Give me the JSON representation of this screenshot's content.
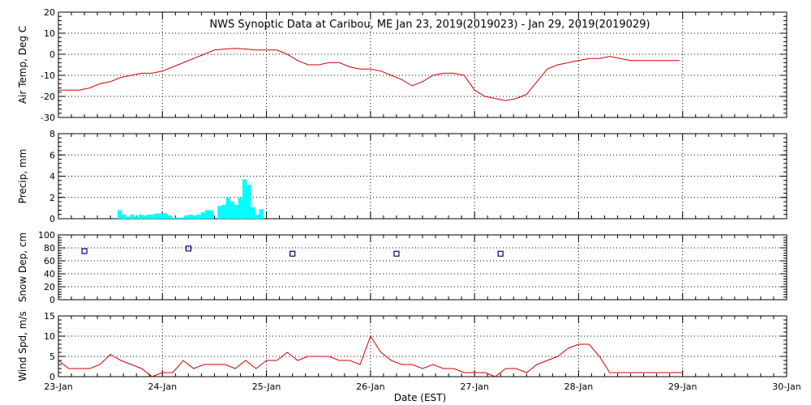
{
  "title": "NWS Synoptic Data at Caribou, ME   Jan 23, 2019(2019023) - Jan 29, 2019(2019029)",
  "xlabel": "Date (EST)",
  "colors": {
    "line": "#cc0000",
    "precip": "#00ffff",
    "snow": "#00008b",
    "frame": "#000000"
  },
  "chart_data": [
    {
      "type": "line",
      "ylabel": "Air Temp, Deg C",
      "ylim": [
        -30,
        20
      ],
      "yticks": [
        20,
        10,
        0,
        -10,
        -20,
        -30
      ],
      "x_unit": "days since 23-Jan 00:00 EST",
      "series": [
        {
          "x": [
            0.0,
            0.1,
            0.2,
            0.3,
            0.4,
            0.5,
            0.6,
            0.7,
            0.8,
            0.9,
            1.0,
            1.1,
            1.2,
            1.3,
            1.4,
            1.5,
            1.6,
            1.7,
            1.8,
            1.9,
            2.0,
            2.1,
            2.2,
            2.3,
            2.4,
            2.5,
            2.6,
            2.7,
            2.8,
            2.9,
            3.0,
            3.1,
            3.2,
            3.3,
            3.4,
            3.5,
            3.6,
            3.7,
            3.8,
            3.9,
            4.0,
            4.1,
            4.2,
            4.3,
            4.4,
            4.5,
            4.6,
            4.7,
            4.8,
            4.9,
            5.0,
            5.1,
            5.2,
            5.3,
            5.4,
            5.5,
            5.6,
            5.7,
            5.8,
            5.9,
            5.97
          ],
          "values": [
            -17,
            -17,
            -17,
            -16,
            -14,
            -13,
            -11,
            -10,
            -9,
            -9,
            -8,
            -6,
            -4,
            -2,
            0,
            2,
            2.5,
            2.8,
            2.5,
            2,
            2,
            2,
            0,
            -3,
            -5,
            -5,
            -4,
            -4,
            -6,
            -7,
            -7,
            -8,
            -10,
            -12,
            -15,
            -13,
            -10,
            -9,
            -9,
            -10,
            -17,
            -20,
            -21,
            -22,
            -21,
            -19,
            -13,
            -7,
            -5,
            -4,
            -3,
            -2,
            -2,
            -1,
            -2,
            -3,
            -3,
            -3,
            -3,
            -3,
            -3
          ]
        }
      ]
    },
    {
      "type": "bar",
      "ylabel": "Precip, mm",
      "ylim": [
        0,
        8
      ],
      "yticks": [
        8,
        6,
        4,
        2,
        0
      ],
      "x_unit": "days since 23-Jan 00:00 EST",
      "bar_width_days": 0.042,
      "x": [
        0.27,
        0.31,
        0.35,
        0.39,
        0.43,
        0.47,
        0.51,
        0.55,
        0.59,
        0.63,
        0.67,
        0.71,
        0.75,
        0.79,
        0.83,
        0.87,
        0.91,
        0.95,
        0.99,
        1.03,
        1.07,
        1.11,
        1.15,
        1.19,
        1.23,
        1.27,
        1.31,
        1.35,
        1.39,
        1.43,
        1.47,
        1.51,
        1.55,
        1.59,
        1.63,
        1.67,
        1.71,
        1.75,
        1.79,
        1.83,
        1.87,
        1.91,
        1.95,
        1.99
      ],
      "values": [
        0,
        0,
        0,
        0,
        0,
        0,
        0,
        0,
        0.8,
        0.4,
        0.2,
        0.4,
        0.2,
        0.4,
        0.3,
        0.4,
        0.4,
        0.5,
        0.5,
        0.5,
        0.3,
        0.1,
        0.1,
        0.1,
        0.3,
        0.4,
        0.3,
        0.4,
        0.6,
        0.8,
        0.8,
        0,
        1.2,
        1.3,
        2.0,
        1.6,
        1.3,
        2.0,
        3.7,
        3.2,
        1.1,
        0.4,
        0.9,
        0
      ]
    },
    {
      "type": "scatter",
      "ylabel": "Snow Dep, cm",
      "ylim": [
        0,
        100
      ],
      "yticks": [
        100,
        80,
        60,
        40,
        20,
        0
      ],
      "x_unit": "days since 23-Jan 00:00 EST",
      "x": [
        0.25,
        1.25,
        2.25,
        3.25,
        4.25
      ],
      "values": [
        75,
        79,
        71,
        71,
        71
      ]
    },
    {
      "type": "line",
      "ylabel": "Wind Spd, m/s",
      "ylim": [
        0,
        15
      ],
      "yticks": [
        15,
        10,
        5,
        0
      ],
      "x_unit": "days since 23-Jan 00:00 EST",
      "series": [
        {
          "x": [
            0.0,
            0.1,
            0.2,
            0.3,
            0.4,
            0.5,
            0.6,
            0.7,
            0.8,
            0.9,
            1.0,
            1.1,
            1.2,
            1.3,
            1.4,
            1.5,
            1.6,
            1.7,
            1.8,
            1.9,
            2.0,
            2.1,
            2.2,
            2.3,
            2.4,
            2.5,
            2.6,
            2.7,
            2.8,
            2.9,
            3.0,
            3.1,
            3.2,
            3.3,
            3.4,
            3.5,
            3.6,
            3.7,
            3.8,
            3.9,
            4.0,
            4.1,
            4.2,
            4.3,
            4.4,
            4.5,
            4.6,
            4.7,
            4.8,
            4.9,
            5.0,
            5.1,
            5.2,
            5.3,
            5.4,
            5.5,
            5.6,
            5.7,
            5.8,
            5.9,
            6.0
          ],
          "values": [
            4,
            2,
            2,
            2,
            3,
            5.5,
            4,
            3,
            2,
            0,
            1,
            1,
            4,
            2,
            3,
            3,
            3,
            2,
            4,
            2,
            4,
            4,
            6,
            4,
            5,
            5,
            5,
            4,
            4,
            3,
            10,
            6,
            4,
            3,
            3,
            2,
            3,
            2,
            2,
            1,
            1,
            1,
            0,
            2,
            2,
            1,
            3,
            4,
            5,
            7,
            8,
            8,
            5,
            1,
            1,
            1,
            1,
            1,
            1,
            1,
            1
          ]
        }
      ]
    }
  ],
  "x_ticks": [
    "23-Jan",
    "24-Jan",
    "25-Jan",
    "26-Jan",
    "27-Jan",
    "28-Jan",
    "29-Jan",
    "30-Jan"
  ],
  "xlim_days": [
    0,
    7
  ]
}
